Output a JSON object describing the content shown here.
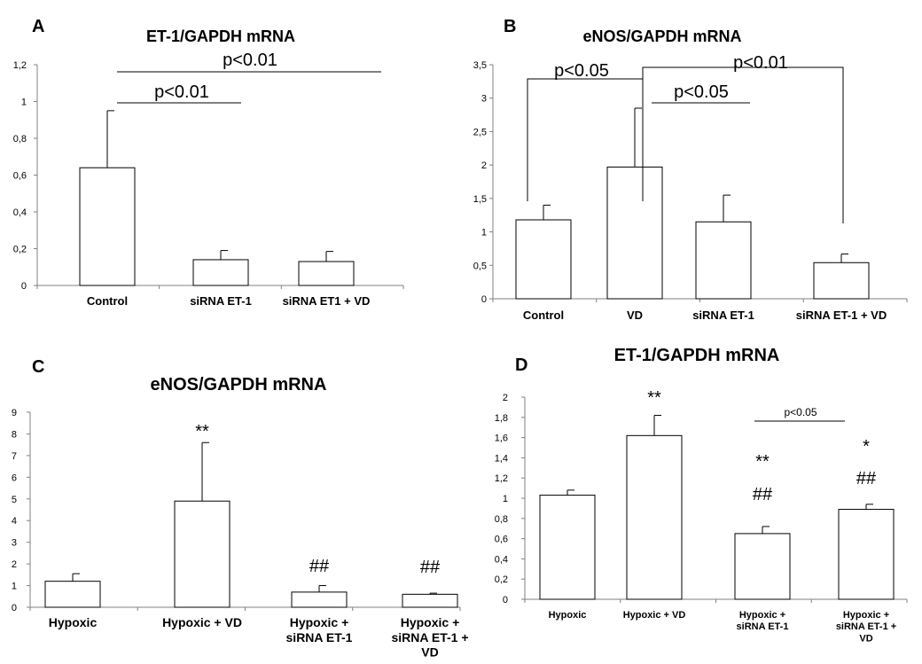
{
  "chart_data": [
    {
      "panel": "A",
      "type": "bar",
      "title": "ET-1/GAPDH mRNA",
      "categories": [
        "Control",
        "siRNA ET-1",
        "siRNA ET1 + VD"
      ],
      "values": [
        0.64,
        0.14,
        0.13
      ],
      "errors": [
        0.31,
        0.05,
        0.055
      ],
      "ylim": [
        0,
        1.2
      ],
      "yticks": [
        "0",
        "0,2",
        "0,4",
        "0,6",
        "0,8",
        "1",
        "1,2"
      ],
      "annotations": [],
      "brackets": [
        {
          "label": "p<0.01",
          "from": 0,
          "to": 2
        },
        {
          "label": "p<0.01",
          "from": 0,
          "to": 1
        }
      ]
    },
    {
      "panel": "B",
      "type": "bar",
      "title": "eNOS/GAPDH mRNA",
      "categories": [
        "Control",
        "VD",
        "siRNA ET-1",
        "siRNA ET-1 + VD"
      ],
      "values": [
        1.18,
        1.97,
        1.15,
        0.54
      ],
      "errors": [
        0.22,
        0.88,
        0.4,
        0.13
      ],
      "ylim": [
        0,
        3.5
      ],
      "yticks": [
        "0",
        "0,5",
        "1",
        "1,5",
        "2",
        "2,5",
        "3",
        "3,5"
      ],
      "annotations": [],
      "brackets": [
        {
          "label": "p<0.05",
          "from": 0,
          "to": 1
        },
        {
          "label": "p<0.05",
          "from": 1,
          "to": 2
        },
        {
          "label": "p<0.01",
          "from": 1,
          "to": 3
        }
      ]
    },
    {
      "panel": "C",
      "type": "bar",
      "title": "eNOS/GAPDH mRNA",
      "categories": [
        "Hypoxic",
        "Hypoxic + VD",
        "Hypoxic + siRNA ET-1",
        "Hypoxic + siRNA ET-1 + VD"
      ],
      "values": [
        1.2,
        4.9,
        0.7,
        0.6
      ],
      "errors": [
        0.35,
        2.7,
        0.3,
        0.05
      ],
      "ylim": [
        0,
        9
      ],
      "yticks": [
        "0",
        "1",
        "2",
        "3",
        "4",
        "5",
        "6",
        "7",
        "8",
        "9"
      ],
      "annotations": [
        "",
        "**",
        "##",
        "##"
      ],
      "brackets": []
    },
    {
      "panel": "D",
      "type": "bar",
      "title": "ET-1/GAPDH mRNA",
      "categories": [
        "Hypoxic",
        "Hypoxic + VD",
        "Hypoxic + siRNA ET-1",
        "Hypoxic + siRNA ET-1 + VD"
      ],
      "values": [
        1.03,
        1.62,
        0.65,
        0.89
      ],
      "errors": [
        0.05,
        0.2,
        0.07,
        0.05
      ],
      "ylim": [
        0,
        2
      ],
      "yticks": [
        "0",
        "0,2",
        "0,4",
        "0,6",
        "0,8",
        "1",
        "1,2",
        "1,4",
        "1,6",
        "1,8",
        "2"
      ],
      "annotations": [
        "",
        "**",
        "**|##",
        "*|##"
      ],
      "brackets": [
        {
          "label": "p<0.05",
          "from": 2,
          "to": 3
        }
      ]
    }
  ]
}
